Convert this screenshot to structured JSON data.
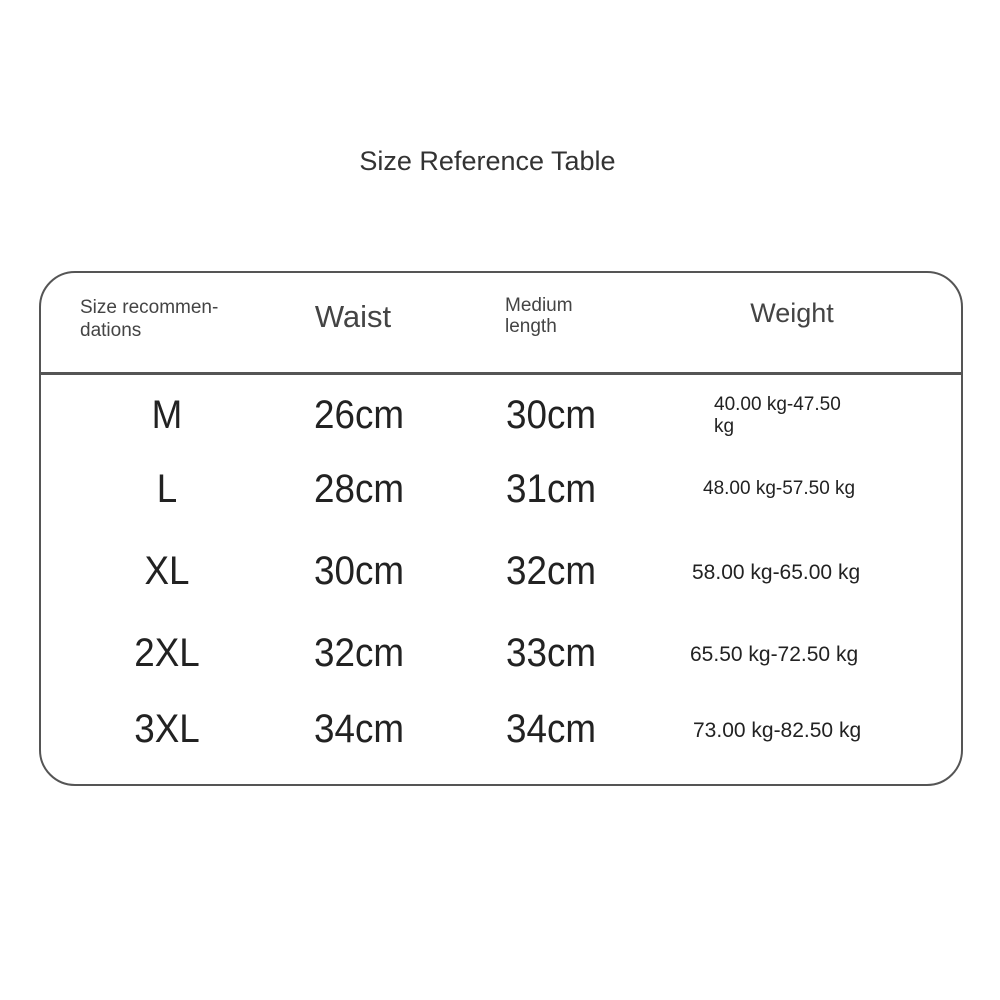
{
  "title": "Size Reference Table",
  "headers": {
    "size": "Size recommen-dations",
    "waist": "Waist",
    "length": "Medium length",
    "weight": "Weight"
  },
  "rows": [
    {
      "size": "M",
      "waist": "26cm",
      "length": "30cm",
      "weight": "40.00 kg-47.50 kg"
    },
    {
      "size": "L",
      "waist": "28cm",
      "length": "31cm",
      "weight": "48.00 kg-57.50 kg"
    },
    {
      "size": "XL",
      "waist": "30cm",
      "length": "32cm",
      "weight": "58.00 kg-65.00 kg"
    },
    {
      "size": "2XL",
      "waist": "32cm",
      "length": "33cm",
      "weight": "65.50 kg-72.50 kg"
    },
    {
      "size": "3XL",
      "waist": "34cm",
      "length": "34cm",
      "weight": "73.00 kg-82.50 kg"
    }
  ]
}
